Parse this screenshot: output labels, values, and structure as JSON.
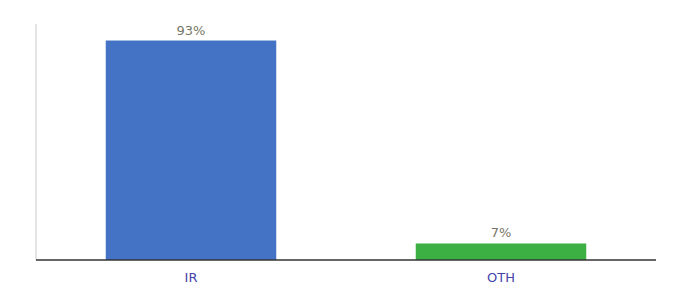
{
  "chart_data": {
    "type": "bar",
    "categories": [
      "IR",
      "OTH"
    ],
    "values": [
      93,
      7
    ],
    "value_labels": [
      "93%",
      "7%"
    ],
    "colors": [
      "#4472c4",
      "#3cb043"
    ],
    "ylim": [
      0,
      100
    ],
    "grid": false,
    "data_labels": true,
    "tick_labels": "x"
  }
}
